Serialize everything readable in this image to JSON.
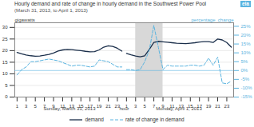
{
  "chart_data": {
    "type": "line",
    "title": "Hourly demand and rate of change in hourly demand in the Southwest Power Pool",
    "subtitle": "(March 31, 2013, to April 1, 2013)",
    "ylabel": "gigawatts",
    "y2label": "percentage  change",
    "xlabel": "hour",
    "x_group_labels": [
      "Sunday, March 31, 2013",
      "Monday, April 1, 2013"
    ],
    "logo": {
      "text": "eia",
      "color": "#5ab4e0"
    },
    "categories": [
      "1",
      null,
      "3",
      null,
      "5",
      null,
      "7",
      null,
      "9",
      null,
      "11",
      null,
      "13",
      null,
      "15",
      null,
      "17",
      null,
      "19",
      null,
      "21",
      null,
      "23",
      null,
      "1",
      null,
      "3",
      null,
      "5",
      null,
      "7",
      null,
      "9",
      null,
      "11",
      null,
      "13",
      null,
      "15",
      null,
      "17",
      null,
      "19",
      null,
      "21",
      null,
      "23",
      null
    ],
    "series": [
      {
        "name": "demand",
        "color": "#1a2e4a",
        "line_style": "solid",
        "values": [
          19.2,
          18.6,
          18.1,
          17.8,
          17.6,
          17.7,
          18.0,
          18.4,
          19.0,
          19.8,
          20.3,
          20.5,
          20.4,
          20.2,
          20.0,
          19.7,
          19.5,
          19.6,
          20.3,
          21.5,
          22.1,
          21.8,
          21.0,
          19.8,
          null,
          null,
          null,
          null,
          null,
          null,
          null,
          null,
          null,
          null,
          null,
          null,
          null,
          null,
          null,
          null,
          null,
          null,
          null,
          null,
          null,
          null,
          null,
          null
        ]
      },
      {
        "name": "demand",
        "color": "#1a2e4a",
        "line_style": "solid",
        "values": [
          null,
          null,
          null,
          null,
          null,
          null,
          null,
          null,
          null,
          null,
          null,
          null,
          null,
          null,
          null,
          null,
          null,
          null,
          null,
          null,
          null,
          null,
          null,
          null,
          18.8,
          18.2,
          17.7,
          17.3,
          17.8,
          20.5,
          23.5,
          24.0,
          23.8,
          23.6,
          23.4,
          23.2,
          23.1,
          23.0,
          23.2,
          23.4,
          23.7,
          23.9,
          23.9,
          23.5,
          25.0,
          24.6,
          23.5,
          21.5
        ]
      },
      {
        "name": "rate of change in demand",
        "color": "#5ab4e0",
        "line_style": "dashed",
        "axis": "y2",
        "values": [
          -2.5,
          0.5,
          2.0,
          5.0,
          5.0,
          5.5,
          6.0,
          6.5,
          6.0,
          5.5,
          4.5,
          3.5,
          2.5,
          3.0,
          3.0,
          2.5,
          2.0,
          2.5,
          6.0,
          5.5,
          5.0,
          3.5,
          2.0,
          2.0,
          null,
          null,
          null,
          null,
          null,
          null,
          null,
          null,
          null,
          null,
          null,
          null,
          null,
          null,
          null,
          null,
          null,
          null,
          null,
          null,
          null,
          null,
          null,
          null
        ]
      },
      {
        "name": "rate of change in demand",
        "color": "#5ab4e0",
        "line_style": "dashed",
        "axis": "y2",
        "values": [
          null,
          null,
          null,
          null,
          null,
          null,
          null,
          null,
          null,
          null,
          null,
          null,
          null,
          null,
          null,
          null,
          null,
          null,
          null,
          null,
          null,
          null,
          null,
          null,
          0.5,
          0.5,
          0.0,
          0.5,
          5.0,
          11.5,
          25.5,
          13.0,
          0.5,
          3.0,
          2.5,
          2.5,
          2.5,
          2.5,
          3.0,
          3.0,
          2.5,
          3.0,
          7.0,
          3.0,
          7.5,
          -7.0,
          -7.5,
          -6.0
        ]
      }
    ],
    "shaded_span": {
      "x": [
        26,
        32
      ],
      "color": "#d8d8d8"
    },
    "reference_lines": [
      {
        "axis": "y2",
        "value": 0
      }
    ],
    "ylim": [
      0,
      32
    ],
    "yticks": [
      0,
      5,
      10,
      15,
      20,
      25,
      30
    ],
    "y2lim": [
      -15,
      27
    ],
    "y2ticks": [
      {
        "value": -15,
        "label": "-15%"
      },
      {
        "value": -10,
        "label": "-10%"
      },
      {
        "value": -5,
        "label": "-5%"
      },
      {
        "value": 0,
        "label": "0%"
      },
      {
        "value": 5,
        "label": "5%"
      },
      {
        "value": 10,
        "label": "10%"
      },
      {
        "value": 15,
        "label": "15%"
      },
      {
        "value": 20,
        "label": "20%"
      },
      {
        "value": 25,
        "label": "25%"
      }
    ],
    "grid": true,
    "legend": "bottom"
  }
}
